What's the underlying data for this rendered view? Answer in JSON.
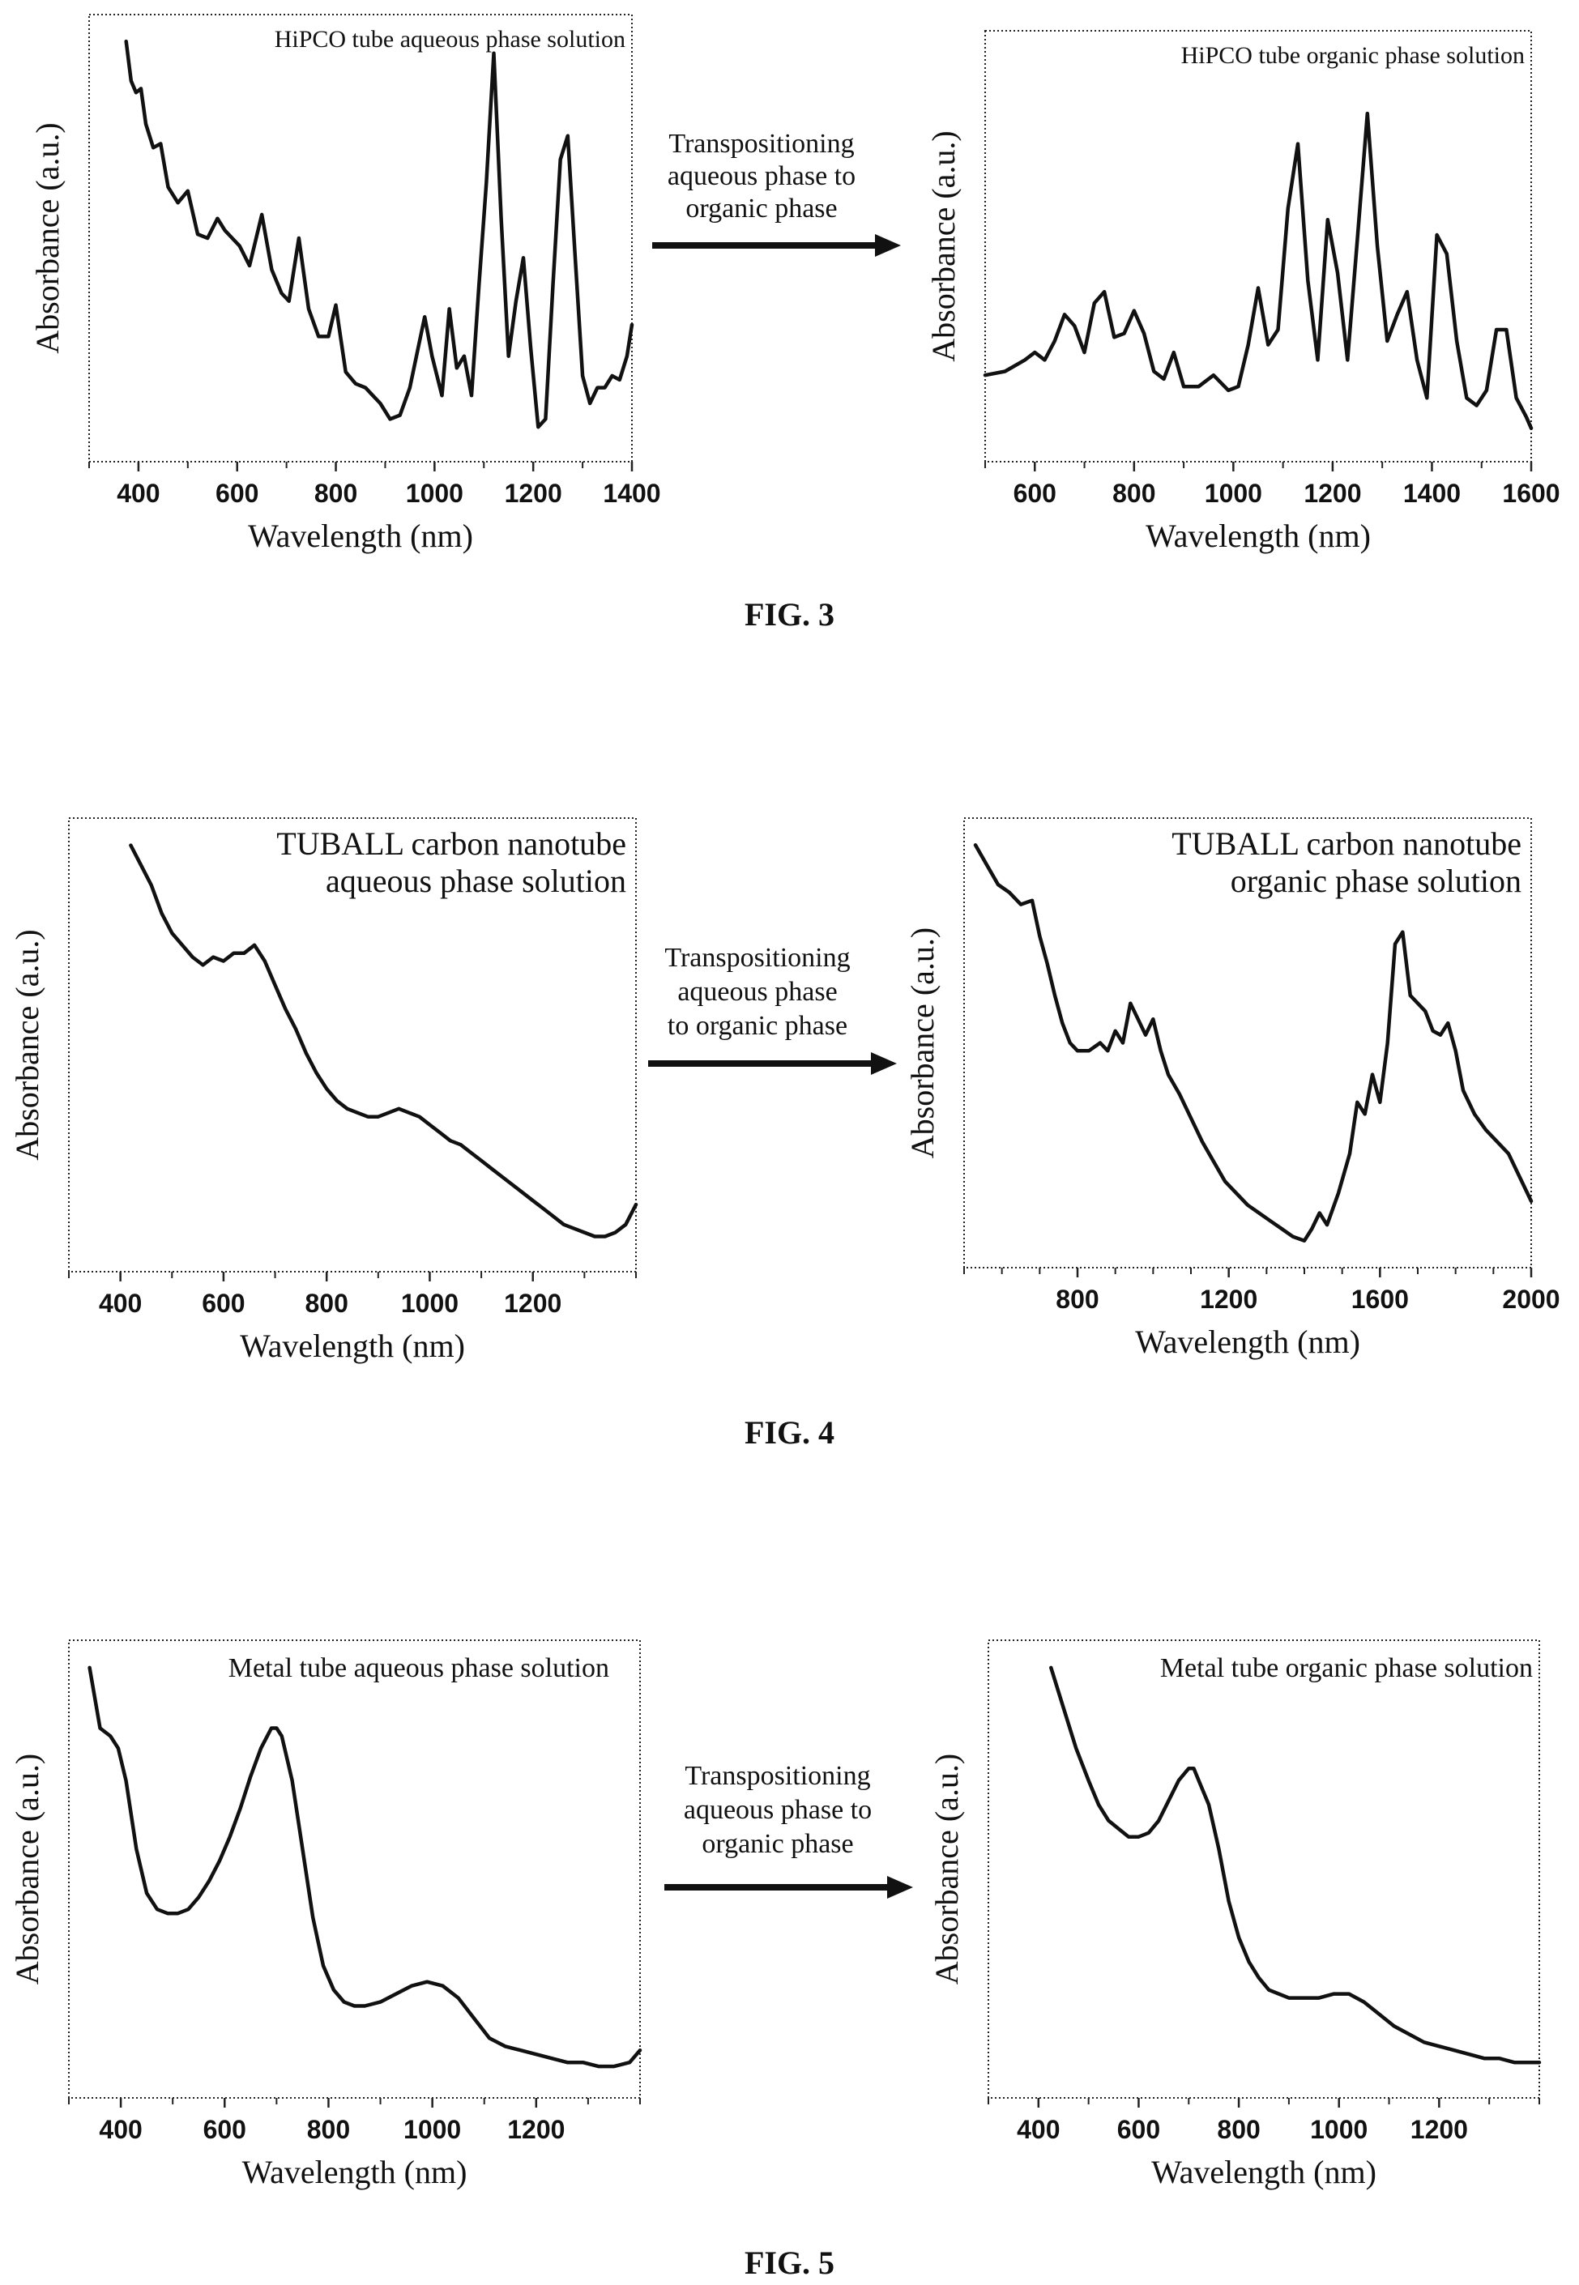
{
  "figures": [
    {
      "caption": "FIG. 3",
      "arrow_text": [
        "Transpositioning",
        "aqueous phase to",
        "organic phase"
      ],
      "charts": [
        {
          "title_lines": [
            "HiPCO tube aqueous phase solution"
          ],
          "xlabel": "Wavelength (nm)",
          "ylabel": "Absorbance (a.u.)",
          "xticks": [
            400,
            600,
            800,
            1000,
            1200,
            1400
          ]
        },
        {
          "title_lines": [
            "HiPCO tube organic phase solution"
          ],
          "xlabel": "Wavelength (nm)",
          "ylabel": "Absorbance (a.u.)",
          "xticks": [
            600,
            800,
            1000,
            1200,
            1400,
            1600
          ]
        }
      ]
    },
    {
      "caption": "FIG. 4",
      "arrow_text": [
        "Transpositioning",
        "aqueous phase",
        "to organic phase"
      ],
      "charts": [
        {
          "title_lines": [
            "TUBALL carbon nanotube",
            "aqueous phase solution"
          ],
          "xlabel": "Wavelength (nm)",
          "ylabel": "Absorbance (a.u.)",
          "xticks": [
            400,
            600,
            800,
            1000,
            1200
          ]
        },
        {
          "title_lines": [
            "TUBALL carbon nanotube",
            "organic phase solution"
          ],
          "xlabel": "Wavelength (nm)",
          "ylabel": "Absorbance (a.u.)",
          "xticks": [
            800,
            1200,
            1600,
            2000
          ]
        }
      ]
    },
    {
      "caption": "FIG. 5",
      "arrow_text": [
        "Transpositioning",
        "aqueous phase to",
        "organic phase"
      ],
      "charts": [
        {
          "title_lines": [
            "Metal tube aqueous phase solution"
          ],
          "xlabel": "Wavelength (nm)",
          "ylabel": "Absorbance (a.u.)",
          "xticks": [
            400,
            600,
            800,
            1000,
            1200
          ]
        },
        {
          "title_lines": [
            "Metal tube organic phase solution"
          ],
          "xlabel": "Wavelength (nm)",
          "ylabel": "Absorbance (a.u.)",
          "xticks": [
            400,
            600,
            800,
            1000,
            1200
          ]
        }
      ]
    }
  ],
  "chart_data": [
    {
      "type": "line",
      "title": "HiPCO tube aqueous phase solution",
      "xlabel": "Wavelength (nm)",
      "ylabel": "Absorbance (a.u.)",
      "xlim": [
        300,
        1400
      ],
      "ylim": [
        0,
        1
      ],
      "x": [
        375,
        385,
        395,
        405,
        415,
        430,
        445,
        460,
        480,
        500,
        520,
        540,
        560,
        575,
        590,
        605,
        625,
        650,
        670,
        690,
        705,
        725,
        745,
        765,
        785,
        800,
        820,
        840,
        860,
        875,
        890,
        910,
        930,
        950,
        965,
        980,
        995,
        1015,
        1030,
        1045,
        1060,
        1075,
        1090,
        1105,
        1120,
        1135,
        1150,
        1165,
        1180,
        1195,
        1210,
        1225,
        1240,
        1255,
        1270,
        1285,
        1300,
        1315,
        1330,
        1345,
        1360,
        1375,
        1390,
        1400
      ],
      "y": [
        1.0,
        0.9,
        0.87,
        0.88,
        0.79,
        0.73,
        0.74,
        0.63,
        0.59,
        0.62,
        0.51,
        0.5,
        0.55,
        0.52,
        0.5,
        0.48,
        0.43,
        0.56,
        0.42,
        0.36,
        0.34,
        0.5,
        0.32,
        0.25,
        0.25,
        0.33,
        0.16,
        0.13,
        0.12,
        0.1,
        0.08,
        0.04,
        0.05,
        0.12,
        0.21,
        0.3,
        0.2,
        0.1,
        0.32,
        0.17,
        0.2,
        0.1,
        0.38,
        0.64,
        0.97,
        0.55,
        0.2,
        0.34,
        0.45,
        0.22,
        0.02,
        0.04,
        0.38,
        0.7,
        0.76,
        0.45,
        0.15,
        0.08,
        0.12,
        0.12,
        0.15,
        0.14,
        0.2,
        0.28
      ]
    },
    {
      "type": "line",
      "title": "HiPCO tube organic phase solution",
      "xlabel": "Wavelength (nm)",
      "ylabel": "Absorbance (a.u.)",
      "xlim": [
        500,
        1600
      ],
      "ylim": [
        0,
        1
      ],
      "x": [
        500,
        540,
        580,
        600,
        620,
        640,
        660,
        680,
        700,
        720,
        740,
        760,
        780,
        800,
        820,
        840,
        860,
        880,
        900,
        930,
        960,
        990,
        1010,
        1030,
        1050,
        1070,
        1090,
        1110,
        1130,
        1150,
        1170,
        1190,
        1210,
        1230,
        1250,
        1270,
        1290,
        1310,
        1330,
        1350,
        1370,
        1390,
        1410,
        1430,
        1450,
        1470,
        1490,
        1510,
        1530,
        1550,
        1570,
        1590,
        1600
      ],
      "y": [
        0.16,
        0.17,
        0.2,
        0.22,
        0.2,
        0.25,
        0.32,
        0.29,
        0.22,
        0.35,
        0.38,
        0.26,
        0.27,
        0.33,
        0.27,
        0.17,
        0.15,
        0.22,
        0.13,
        0.13,
        0.16,
        0.12,
        0.13,
        0.24,
        0.39,
        0.24,
        0.28,
        0.6,
        0.77,
        0.41,
        0.2,
        0.57,
        0.43,
        0.2,
        0.52,
        0.85,
        0.5,
        0.25,
        0.32,
        0.38,
        0.2,
        0.1,
        0.53,
        0.48,
        0.25,
        0.1,
        0.08,
        0.12,
        0.28,
        0.28,
        0.1,
        0.05,
        0.02
      ]
    },
    {
      "type": "line",
      "title": "TUBALL carbon nanotube aqueous phase solution",
      "xlabel": "Wavelength (nm)",
      "ylabel": "Absorbance (a.u.)",
      "xlim": [
        300,
        1400
      ],
      "ylim": [
        0,
        1
      ],
      "x": [
        420,
        440,
        460,
        480,
        500,
        520,
        540,
        560,
        580,
        600,
        620,
        640,
        660,
        680,
        700,
        720,
        740,
        760,
        780,
        800,
        820,
        840,
        860,
        880,
        900,
        920,
        940,
        960,
        980,
        1000,
        1020,
        1040,
        1060,
        1080,
        1100,
        1120,
        1140,
        1160,
        1180,
        1200,
        1220,
        1240,
        1260,
        1280,
        1300,
        1320,
        1340,
        1360,
        1380,
        1400
      ],
      "y": [
        1.0,
        0.95,
        0.9,
        0.83,
        0.78,
        0.75,
        0.72,
        0.7,
        0.72,
        0.71,
        0.73,
        0.73,
        0.75,
        0.71,
        0.65,
        0.59,
        0.54,
        0.48,
        0.43,
        0.39,
        0.36,
        0.34,
        0.33,
        0.32,
        0.32,
        0.33,
        0.34,
        0.33,
        0.32,
        0.3,
        0.28,
        0.26,
        0.25,
        0.23,
        0.21,
        0.19,
        0.17,
        0.15,
        0.13,
        0.11,
        0.09,
        0.07,
        0.05,
        0.04,
        0.03,
        0.02,
        0.02,
        0.03,
        0.05,
        0.1
      ]
    },
    {
      "type": "line",
      "title": "TUBALL carbon nanotube organic phase solution",
      "xlabel": "Wavelength (nm)",
      "ylabel": "Absorbance (a.u.)",
      "xlim": [
        500,
        2000
      ],
      "ylim": [
        0,
        1
      ],
      "x": [
        530,
        560,
        590,
        620,
        650,
        680,
        700,
        720,
        740,
        760,
        780,
        800,
        830,
        860,
        880,
        900,
        920,
        940,
        960,
        980,
        1000,
        1020,
        1040,
        1070,
        1100,
        1130,
        1160,
        1190,
        1220,
        1250,
        1280,
        1310,
        1340,
        1370,
        1400,
        1420,
        1440,
        1460,
        1490,
        1520,
        1540,
        1560,
        1580,
        1600,
        1620,
        1640,
        1660,
        1680,
        1700,
        1720,
        1740,
        1760,
        1780,
        1800,
        1820,
        1850,
        1880,
        1910,
        1940,
        1970,
        2000
      ],
      "y": [
        1.0,
        0.95,
        0.9,
        0.88,
        0.85,
        0.86,
        0.77,
        0.7,
        0.62,
        0.55,
        0.5,
        0.48,
        0.48,
        0.5,
        0.48,
        0.53,
        0.5,
        0.6,
        0.56,
        0.52,
        0.56,
        0.48,
        0.42,
        0.37,
        0.31,
        0.25,
        0.2,
        0.15,
        0.12,
        0.09,
        0.07,
        0.05,
        0.03,
        0.01,
        0.0,
        0.03,
        0.07,
        0.04,
        0.12,
        0.22,
        0.35,
        0.32,
        0.42,
        0.35,
        0.5,
        0.75,
        0.78,
        0.62,
        0.6,
        0.58,
        0.53,
        0.52,
        0.55,
        0.48,
        0.38,
        0.32,
        0.28,
        0.25,
        0.22,
        0.16,
        0.1
      ]
    },
    {
      "type": "line",
      "title": "Metal tube aqueous phase solution",
      "xlabel": "Wavelength (nm)",
      "ylabel": "Absorbance (a.u.)",
      "xlim": [
        300,
        1400
      ],
      "ylim": [
        0,
        1
      ],
      "x": [
        340,
        360,
        380,
        395,
        410,
        430,
        450,
        470,
        490,
        510,
        530,
        550,
        570,
        590,
        610,
        630,
        650,
        670,
        690,
        700,
        710,
        730,
        750,
        770,
        790,
        810,
        830,
        850,
        870,
        900,
        930,
        960,
        990,
        1020,
        1050,
        1080,
        1110,
        1140,
        1170,
        1200,
        1230,
        1260,
        1290,
        1320,
        1350,
        1380,
        1400
      ],
      "y": [
        1.0,
        0.85,
        0.83,
        0.8,
        0.72,
        0.55,
        0.44,
        0.4,
        0.39,
        0.39,
        0.4,
        0.43,
        0.47,
        0.52,
        0.58,
        0.65,
        0.73,
        0.8,
        0.85,
        0.85,
        0.83,
        0.72,
        0.55,
        0.38,
        0.26,
        0.2,
        0.17,
        0.16,
        0.16,
        0.17,
        0.19,
        0.21,
        0.22,
        0.21,
        0.18,
        0.13,
        0.08,
        0.06,
        0.05,
        0.04,
        0.03,
        0.02,
        0.02,
        0.01,
        0.01,
        0.02,
        0.05
      ]
    },
    {
      "type": "line",
      "title": "Metal tube organic phase solution",
      "xlabel": "Wavelength (nm)",
      "ylabel": "Absorbance (a.u.)",
      "xlim": [
        300,
        1400
      ],
      "ylim": [
        0,
        1
      ],
      "x": [
        425,
        450,
        475,
        500,
        520,
        540,
        560,
        580,
        600,
        620,
        640,
        660,
        680,
        700,
        710,
        720,
        740,
        760,
        780,
        800,
        820,
        840,
        860,
        880,
        900,
        930,
        960,
        990,
        1020,
        1050,
        1080,
        1110,
        1140,
        1170,
        1200,
        1230,
        1260,
        1290,
        1320,
        1350,
        1380,
        1400
      ],
      "y": [
        1.0,
        0.9,
        0.8,
        0.72,
        0.66,
        0.62,
        0.6,
        0.58,
        0.58,
        0.59,
        0.62,
        0.67,
        0.72,
        0.75,
        0.75,
        0.72,
        0.66,
        0.55,
        0.42,
        0.33,
        0.27,
        0.23,
        0.2,
        0.19,
        0.18,
        0.18,
        0.18,
        0.19,
        0.19,
        0.17,
        0.14,
        0.11,
        0.09,
        0.07,
        0.06,
        0.05,
        0.04,
        0.03,
        0.03,
        0.02,
        0.02,
        0.02
      ]
    }
  ]
}
